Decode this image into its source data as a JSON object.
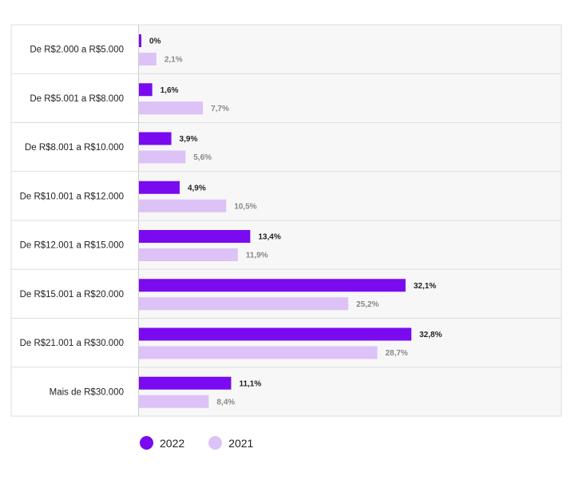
{
  "chart_data": {
    "type": "bar",
    "orientation": "horizontal",
    "categories": [
      "De R$2.000 a R$5.000",
      "De R$5.001 a R$8.000",
      "De R$8.001 a R$10.000",
      "De R$10.001 a R$12.000",
      "De R$12.001 a R$15.000",
      "De R$15.001 a R$20.000",
      "De R$21.001 a R$30.000",
      "Mais de R$30.000"
    ],
    "series": [
      {
        "name": "2022",
        "color": "#7a0af0",
        "values": [
          0,
          1.6,
          3.9,
          4.9,
          13.4,
          32.1,
          32.8,
          11.1
        ],
        "labels": [
          "0%",
          "1,6%",
          "3,9%",
          "4,9%",
          "13,4%",
          "32,1%",
          "32,8%",
          "11,1%"
        ]
      },
      {
        "name": "2021",
        "color": "#dcc2f7",
        "values": [
          2.1,
          7.7,
          5.6,
          10.5,
          11.9,
          25.2,
          28.7,
          8.4
        ],
        "labels": [
          "2,1%",
          "7,7%",
          "5,6%",
          "10,5%",
          "11,9%",
          "25,2%",
          "28,7%",
          "8,4%"
        ]
      }
    ],
    "unit": "%",
    "legend_position": "bottom-left",
    "grid": false
  }
}
